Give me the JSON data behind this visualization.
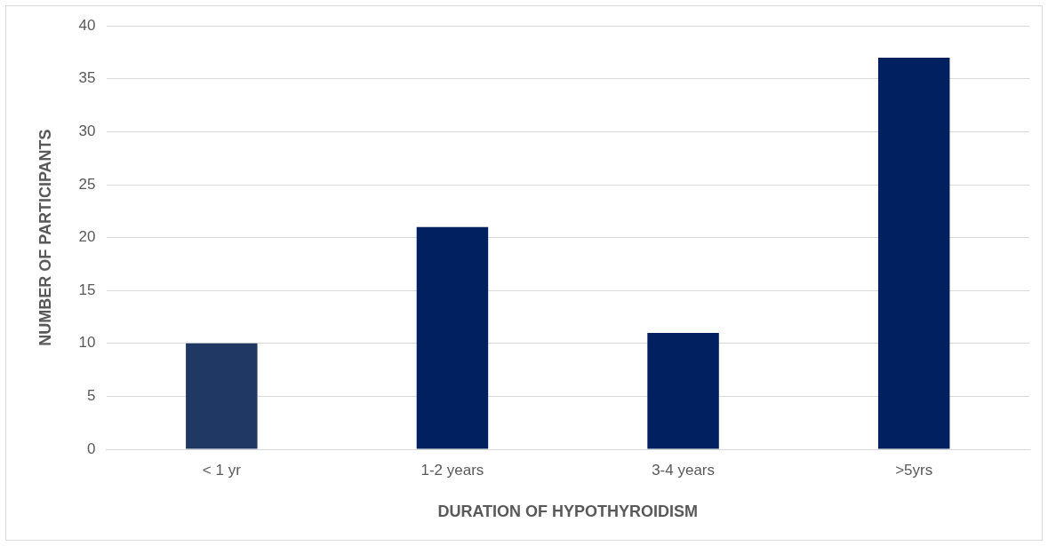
{
  "chart_data": {
    "type": "bar",
    "xlabel": "DURATION OF HYPOTHYROIDISM",
    "ylabel": "NUMBER OF PARTICIPANTS",
    "categories": [
      "< 1 yr",
      "1-2 years",
      "3-4 years",
      ">5yrs"
    ],
    "values": [
      10,
      21,
      11,
      37
    ],
    "colors": [
      "#203864",
      "#002060",
      "#002060",
      "#002060"
    ],
    "ylim": [
      0,
      40
    ],
    "yticks": [
      0,
      5,
      10,
      15,
      20,
      25,
      30,
      35,
      40
    ],
    "grid": "y",
    "legend": false
  }
}
